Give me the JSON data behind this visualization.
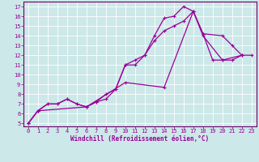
{
  "xlabel": "Windchill (Refroidissement éolien,°C)",
  "bg_color": "#cce8e8",
  "line_color": "#990099",
  "grid_color": "#ffffff",
  "xlim": [
    -0.5,
    23.5
  ],
  "ylim": [
    4.7,
    17.5
  ],
  "xticks": [
    0,
    1,
    2,
    3,
    4,
    5,
    6,
    7,
    8,
    9,
    10,
    11,
    12,
    13,
    14,
    15,
    16,
    17,
    18,
    19,
    20,
    21,
    22,
    23
  ],
  "yticks": [
    5,
    6,
    7,
    8,
    9,
    10,
    11,
    12,
    13,
    14,
    15,
    16,
    17
  ],
  "series": [
    {
      "x": [
        0,
        1,
        2,
        3,
        4,
        5,
        6,
        7,
        8,
        9,
        10,
        11,
        12,
        13,
        14,
        15,
        16,
        17,
        18,
        20,
        21,
        22
      ],
      "y": [
        5.0,
        6.3,
        7.0,
        7.0,
        7.5,
        7.0,
        6.7,
        7.2,
        7.5,
        8.5,
        11.0,
        11.0,
        12.0,
        14.0,
        15.8,
        16.0,
        17.0,
        16.5,
        14.2,
        14.0,
        13.0,
        12.0
      ]
    },
    {
      "x": [
        0,
        1,
        2,
        3,
        4,
        5,
        6,
        7,
        8,
        9,
        10,
        11,
        12,
        13,
        14,
        15,
        16,
        17,
        18,
        19,
        20,
        21,
        22
      ],
      "y": [
        5.0,
        6.3,
        7.0,
        7.0,
        7.5,
        7.0,
        6.7,
        7.2,
        8.0,
        8.5,
        11.0,
        11.5,
        12.0,
        13.5,
        14.5,
        15.0,
        15.5,
        16.5,
        14.2,
        11.5,
        11.5,
        11.5,
        12.0
      ]
    },
    {
      "x": [
        0,
        1,
        6,
        10,
        14,
        17,
        18,
        20,
        22,
        23
      ],
      "y": [
        5.0,
        6.3,
        6.7,
        9.2,
        8.7,
        16.5,
        14.0,
        11.5,
        12.0,
        12.0
      ]
    }
  ],
  "xlabel_fontsize": 5.5,
  "tick_fontsize": 5.0,
  "spine_color": "#660066",
  "marker": "+",
  "markersize": 3.0,
  "linewidth": 0.9
}
